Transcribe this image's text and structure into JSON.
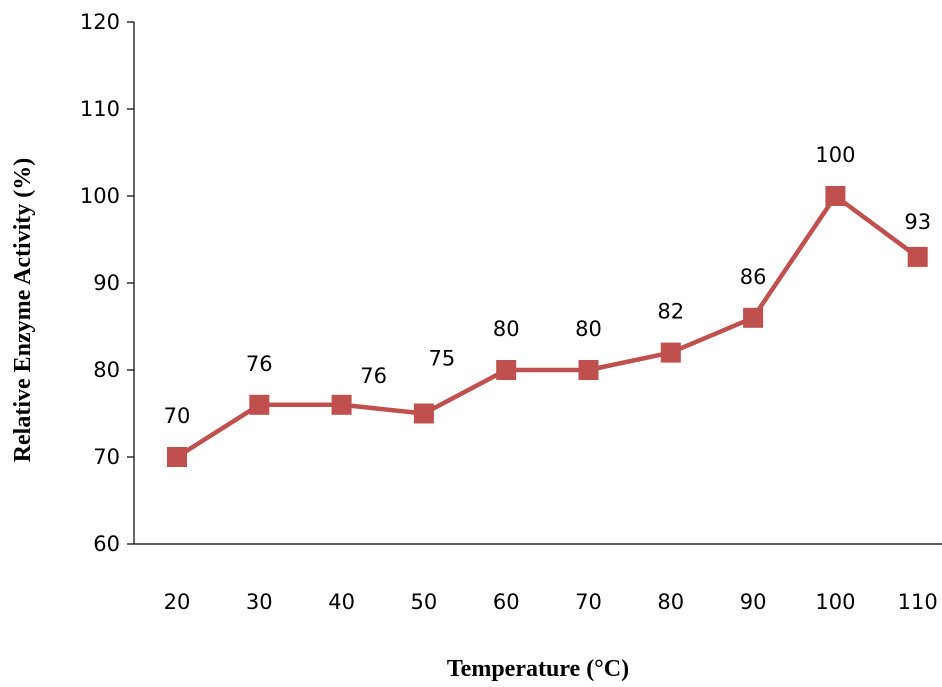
{
  "chart_data": {
    "type": "line",
    "title": "",
    "xlabel": "Temperature (°C)",
    "ylabel": "Relative Enzyme Activity (%)",
    "categories": [
      "20",
      "30",
      "40",
      "50",
      "60",
      "70",
      "80",
      "90",
      "100",
      "110"
    ],
    "yticks": [
      "60",
      "70",
      "80",
      "90",
      "100",
      "110",
      "120"
    ],
    "ylim": [
      60,
      120
    ],
    "grid": false,
    "legend": "none",
    "series": [
      {
        "color": "#c0504d",
        "marker": "square",
        "values": [
          70,
          76,
          76,
          75,
          80,
          80,
          82,
          86,
          100,
          93
        ],
        "labels": [
          "70",
          "76",
          "76",
          "75",
          "80",
          "80",
          "82",
          "86",
          "100",
          "93"
        ]
      }
    ]
  }
}
